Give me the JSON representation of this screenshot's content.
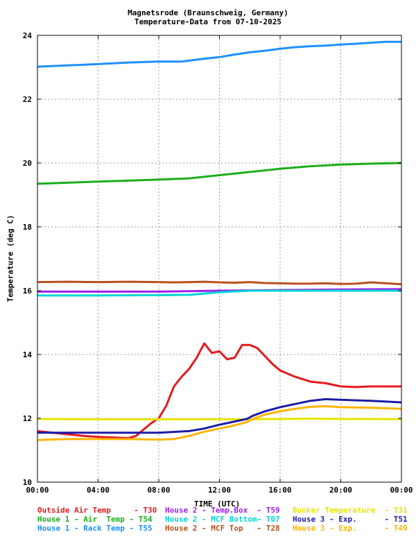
{
  "chart_data": {
    "type": "line",
    "title": "Magnetsrode (Braunschweig, Germany)",
    "subtitle": "Temperature-Data from 07-10-2025",
    "xlabel": "TIME (UTC)",
    "ylabel": "Temperature (deg C)",
    "xlim": [
      0,
      24
    ],
    "ylim": [
      10,
      24
    ],
    "x_ticks": [
      0,
      4,
      8,
      12,
      16,
      20,
      24
    ],
    "x_tick_labels": [
      "00:00",
      "04:00",
      "08:00",
      "12:00",
      "16:00",
      "20:00",
      "00:00"
    ],
    "y_ticks": [
      10,
      12,
      14,
      16,
      18,
      20,
      22,
      24
    ],
    "y_tick_labels": [
      "10",
      "12",
      "14",
      "16",
      "18",
      "20",
      "22",
      "24"
    ],
    "grid": true,
    "legend_position": "bottom",
    "series": [
      {
        "name": "Outside Air Temp     - T30",
        "color": "#e41a1c",
        "x": [
          0,
          1,
          2,
          3,
          4,
          5,
          6,
          6.5,
          7,
          7.5,
          8,
          8.5,
          9,
          9.5,
          10,
          10.5,
          11,
          11.5,
          12,
          12.5,
          13,
          13.5,
          14,
          14.5,
          15,
          15.5,
          16,
          17,
          18,
          19,
          20,
          21,
          22,
          23,
          24
        ],
        "y": [
          11.6,
          11.55,
          11.5,
          11.45,
          11.42,
          11.4,
          11.38,
          11.45,
          11.65,
          11.85,
          12.0,
          12.4,
          13.0,
          13.3,
          13.55,
          13.9,
          14.35,
          14.05,
          14.1,
          13.85,
          13.9,
          14.3,
          14.3,
          14.2,
          13.95,
          13.7,
          13.5,
          13.3,
          13.15,
          13.1,
          13.0,
          12.98,
          13.0,
          13.0,
          13.0
        ]
      },
      {
        "name": "House 1 - Air  Temp - T54",
        "color": "#1aae1a",
        "x": [
          0,
          4,
          8,
          10,
          12,
          14,
          16,
          18,
          20,
          22,
          24
        ],
        "y": [
          19.35,
          19.42,
          19.48,
          19.52,
          19.62,
          19.72,
          19.82,
          19.9,
          19.95,
          19.98,
          20.0
        ]
      },
      {
        "name": "House 1 - Rack Temp - T55",
        "color": "#1e90ff",
        "x": [
          0,
          2,
          4,
          6,
          8,
          9.5,
          11,
          12,
          13,
          14,
          15,
          16,
          17,
          18,
          19,
          20,
          21,
          22,
          23,
          24
        ],
        "y": [
          23.02,
          23.06,
          23.1,
          23.15,
          23.18,
          23.18,
          23.27,
          23.32,
          23.4,
          23.47,
          23.52,
          23.58,
          23.63,
          23.66,
          23.68,
          23.71,
          23.74,
          23.77,
          23.8,
          23.8
        ]
      },
      {
        "name": "House 2 - Temp.Box  - T59",
        "color": "#a020f0",
        "x": [
          0,
          4,
          8,
          12,
          16,
          20,
          24
        ],
        "y": [
          15.97,
          15.97,
          15.97,
          16.0,
          16.02,
          16.04,
          16.05
        ]
      },
      {
        "name": "House 2 - MCF Bottom- T07",
        "color": "#00d5d5",
        "x": [
          0,
          4,
          8,
          10,
          12,
          14,
          16,
          18,
          20,
          22,
          24
        ],
        "y": [
          15.85,
          15.85,
          15.86,
          15.87,
          15.95,
          16.0,
          16.0,
          16.0,
          16.0,
          16.0,
          16.0
        ]
      },
      {
        "name": "House 2 - MCF Top   - T28",
        "color": "#b8501b",
        "x": [
          0,
          2,
          4,
          6,
          8,
          9,
          10,
          11,
          12,
          13,
          14,
          15,
          16,
          17,
          18,
          19,
          20,
          21,
          22,
          23,
          24
        ],
        "y": [
          16.27,
          16.28,
          16.27,
          16.28,
          16.27,
          16.26,
          16.27,
          16.28,
          16.26,
          16.25,
          16.27,
          16.24,
          16.23,
          16.22,
          16.22,
          16.23,
          16.21,
          16.22,
          16.26,
          16.23,
          16.2
        ]
      },
      {
        "name": "Bunker Temperature  - T31",
        "color": "#e6e600",
        "x": [
          0,
          4,
          8,
          12,
          14,
          16,
          18,
          20,
          22,
          24
        ],
        "y": [
          11.98,
          11.97,
          11.97,
          11.97,
          11.97,
          11.98,
          11.99,
          11.98,
          11.98,
          11.97
        ]
      },
      {
        "name": "House 3 - Exp.      - T51",
        "color": "#1c1ca8",
        "x": [
          0,
          2,
          4,
          6,
          8,
          10,
          11,
          12,
          13,
          13.8,
          14.2,
          15,
          16,
          17,
          18,
          19,
          20,
          22,
          24
        ],
        "y": [
          11.55,
          11.55,
          11.55,
          11.55,
          11.55,
          11.6,
          11.68,
          11.8,
          11.9,
          11.98,
          12.08,
          12.22,
          12.35,
          12.45,
          12.55,
          12.6,
          12.58,
          12.55,
          12.5
        ]
      },
      {
        "name": "House 3 - Exp.      - T49",
        "color": "#ffb400",
        "x": [
          0,
          2,
          4,
          6,
          8,
          9,
          10,
          11,
          12,
          13,
          13.8,
          14.2,
          15,
          16,
          17,
          18,
          19,
          20,
          22,
          24
        ],
        "y": [
          11.32,
          11.35,
          11.35,
          11.35,
          11.33,
          11.35,
          11.45,
          11.58,
          11.68,
          11.78,
          11.88,
          11.98,
          12.12,
          12.22,
          12.3,
          12.36,
          12.38,
          12.35,
          12.33,
          12.3
        ]
      }
    ]
  }
}
